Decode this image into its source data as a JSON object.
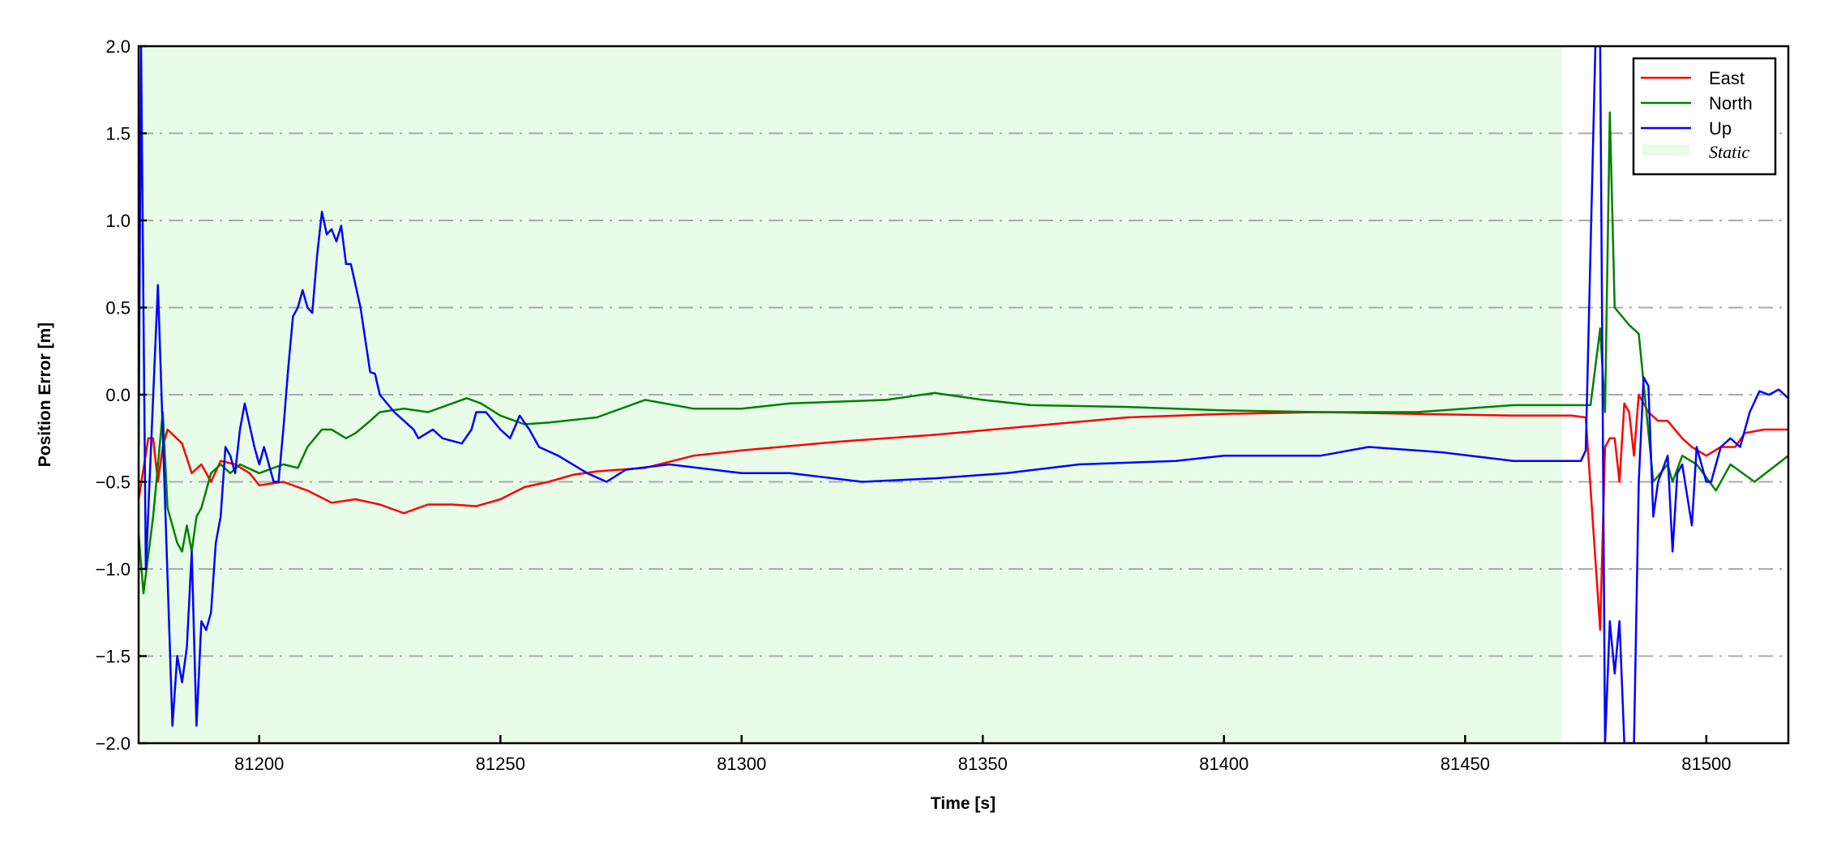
{
  "chart_data": {
    "type": "line",
    "title": "",
    "xlabel": "Time [s]",
    "ylabel": "Position Error [m]",
    "xlim": [
      81175,
      81517
    ],
    "ylim": [
      -2.0,
      2.0
    ],
    "xticks": [
      81200,
      81250,
      81300,
      81350,
      81400,
      81450,
      81500
    ],
    "xtick_labels": [
      "81200",
      "81250",
      "81300",
      "81350",
      "81400",
      "81450",
      "81500"
    ],
    "yticks": [
      2.0,
      1.5,
      1.0,
      0.5,
      0.0,
      -0.5,
      -1.0,
      -1.5,
      -2.0
    ],
    "ytick_labels": [
      "2.0",
      "1.5",
      "1.0",
      "0.5",
      "0.0",
      "−0.5",
      "−1.0",
      "−1.5",
      "−2.0"
    ],
    "grid": "horizontal dash-dot",
    "grid_color": "#aaaaaa",
    "legend_placement": "top-right",
    "shaded_region": {
      "name": "Static",
      "x": [
        81175,
        81470
      ],
      "color": "#e8fce8"
    },
    "series": [
      {
        "name": "East",
        "color": "#ff0000",
        "points": [
          [
            81175,
            -0.6
          ],
          [
            81177,
            -0.25
          ],
          [
            81178,
            -0.25
          ],
          [
            81179,
            -0.5
          ],
          [
            81180,
            -0.3
          ],
          [
            81181,
            -0.2
          ],
          [
            81184,
            -0.28
          ],
          [
            81186,
            -0.45
          ],
          [
            81188,
            -0.4
          ],
          [
            81190,
            -0.5
          ],
          [
            81192,
            -0.38
          ],
          [
            81195,
            -0.4
          ],
          [
            81198,
            -0.45
          ],
          [
            81200,
            -0.52
          ],
          [
            81205,
            -0.5
          ],
          [
            81210,
            -0.55
          ],
          [
            81215,
            -0.62
          ],
          [
            81220,
            -0.6
          ],
          [
            81225,
            -0.63
          ],
          [
            81230,
            -0.68
          ],
          [
            81235,
            -0.63
          ],
          [
            81240,
            -0.63
          ],
          [
            81245,
            -0.64
          ],
          [
            81250,
            -0.6
          ],
          [
            81255,
            -0.53
          ],
          [
            81260,
            -0.5
          ],
          [
            81265,
            -0.46
          ],
          [
            81270,
            -0.44
          ],
          [
            81280,
            -0.42
          ],
          [
            81290,
            -0.35
          ],
          [
            81300,
            -0.32
          ],
          [
            81320,
            -0.27
          ],
          [
            81340,
            -0.23
          ],
          [
            81360,
            -0.18
          ],
          [
            81380,
            -0.13
          ],
          [
            81400,
            -0.11
          ],
          [
            81420,
            -0.1
          ],
          [
            81440,
            -0.11
          ],
          [
            81460,
            -0.12
          ],
          [
            81472,
            -0.12
          ],
          [
            81475,
            -0.13
          ],
          [
            81478,
            -1.35
          ],
          [
            81479,
            -0.3
          ],
          [
            81480,
            -0.25
          ],
          [
            81481,
            -0.25
          ],
          [
            81482,
            -0.5
          ],
          [
            81483,
            -0.05
          ],
          [
            81484,
            -0.1
          ],
          [
            81485,
            -0.35
          ],
          [
            81486,
            0.0
          ],
          [
            81487,
            -0.05
          ],
          [
            81488,
            -0.1
          ],
          [
            81490,
            -0.15
          ],
          [
            81492,
            -0.15
          ],
          [
            81495,
            -0.25
          ],
          [
            81497,
            -0.3
          ],
          [
            81500,
            -0.35
          ],
          [
            81503,
            -0.3
          ],
          [
            81506,
            -0.3
          ],
          [
            81508,
            -0.22
          ],
          [
            81512,
            -0.2
          ],
          [
            81517,
            -0.2
          ]
        ]
      },
      {
        "name": "North",
        "color": "#008000",
        "points": [
          [
            81175,
            -0.8
          ],
          [
            81176,
            -1.14
          ],
          [
            81178,
            -0.7
          ],
          [
            81180,
            -0.1
          ],
          [
            81181,
            -0.65
          ],
          [
            81183,
            -0.85
          ],
          [
            81184,
            -0.9
          ],
          [
            81185,
            -0.75
          ],
          [
            81186,
            -0.9
          ],
          [
            81187,
            -0.7
          ],
          [
            81188,
            -0.65
          ],
          [
            81190,
            -0.45
          ],
          [
            81192,
            -0.4
          ],
          [
            81194,
            -0.45
          ],
          [
            81196,
            -0.4
          ],
          [
            81200,
            -0.45
          ],
          [
            81205,
            -0.4
          ],
          [
            81208,
            -0.42
          ],
          [
            81210,
            -0.3
          ],
          [
            81213,
            -0.2
          ],
          [
            81215,
            -0.2
          ],
          [
            81218,
            -0.25
          ],
          [
            81220,
            -0.22
          ],
          [
            81223,
            -0.15
          ],
          [
            81225,
            -0.1
          ],
          [
            81230,
            -0.08
          ],
          [
            81235,
            -0.1
          ],
          [
            81240,
            -0.05
          ],
          [
            81243,
            -0.02
          ],
          [
            81246,
            -0.05
          ],
          [
            81250,
            -0.12
          ],
          [
            81255,
            -0.17
          ],
          [
            81260,
            -0.16
          ],
          [
            81270,
            -0.13
          ],
          [
            81280,
            -0.03
          ],
          [
            81290,
            -0.08
          ],
          [
            81300,
            -0.08
          ],
          [
            81310,
            -0.05
          ],
          [
            81320,
            -0.04
          ],
          [
            81330,
            -0.03
          ],
          [
            81340,
            0.01
          ],
          [
            81350,
            -0.03
          ],
          [
            81360,
            -0.06
          ],
          [
            81380,
            -0.07
          ],
          [
            81400,
            -0.09
          ],
          [
            81420,
            -0.1
          ],
          [
            81440,
            -0.1
          ],
          [
            81460,
            -0.06
          ],
          [
            81476,
            -0.06
          ],
          [
            81478,
            0.38
          ],
          [
            81479,
            -0.1
          ],
          [
            81480,
            1.62
          ],
          [
            81481,
            0.5
          ],
          [
            81484,
            0.4
          ],
          [
            81486,
            0.35
          ],
          [
            81489,
            -0.5
          ],
          [
            81492,
            -0.4
          ],
          [
            81493,
            -0.5
          ],
          [
            81495,
            -0.35
          ],
          [
            81498,
            -0.4
          ],
          [
            81502,
            -0.55
          ],
          [
            81505,
            -0.4
          ],
          [
            81510,
            -0.5
          ],
          [
            81517,
            -0.35
          ]
        ]
      },
      {
        "name": "Up",
        "color": "#0000ff",
        "points": [
          [
            81175,
            -0.3
          ],
          [
            81175.5,
            2.0
          ],
          [
            81176.5,
            -1.0
          ],
          [
            81179,
            0.63
          ],
          [
            81182,
            -1.9
          ],
          [
            81183,
            -1.5
          ],
          [
            81184,
            -1.65
          ],
          [
            81185,
            -1.45
          ],
          [
            81186,
            -0.9
          ],
          [
            81187,
            -1.9
          ],
          [
            81188,
            -1.3
          ],
          [
            81189,
            -1.35
          ],
          [
            81190,
            -1.25
          ],
          [
            81191,
            -0.85
          ],
          [
            81192,
            -0.7
          ],
          [
            81193,
            -0.3
          ],
          [
            81194,
            -0.35
          ],
          [
            81195,
            -0.45
          ],
          [
            81196,
            -0.2
          ],
          [
            81197,
            -0.05
          ],
          [
            81199,
            -0.3
          ],
          [
            81200,
            -0.4
          ],
          [
            81201,
            -0.3
          ],
          [
            81203,
            -0.5
          ],
          [
            81204,
            -0.5
          ],
          [
            81205,
            -0.2
          ],
          [
            81206,
            0.15
          ],
          [
            81207,
            0.45
          ],
          [
            81208,
            0.5
          ],
          [
            81209,
            0.6
          ],
          [
            81210,
            0.5
          ],
          [
            81211,
            0.47
          ],
          [
            81212,
            0.8
          ],
          [
            81213,
            1.05
          ],
          [
            81214,
            0.92
          ],
          [
            81215,
            0.95
          ],
          [
            81216,
            0.88
          ],
          [
            81217,
            0.97
          ],
          [
            81218,
            0.75
          ],
          [
            81219,
            0.75
          ],
          [
            81221,
            0.5
          ],
          [
            81223,
            0.13
          ],
          [
            81224,
            0.12
          ],
          [
            81225,
            0.0
          ],
          [
            81228,
            -0.1
          ],
          [
            81232,
            -0.2
          ],
          [
            81233,
            -0.25
          ],
          [
            81236,
            -0.2
          ],
          [
            81238,
            -0.25
          ],
          [
            81242,
            -0.28
          ],
          [
            81244,
            -0.2
          ],
          [
            81245,
            -0.1
          ],
          [
            81247,
            -0.1
          ],
          [
            81250,
            -0.2
          ],
          [
            81252,
            -0.25
          ],
          [
            81254,
            -0.12
          ],
          [
            81256,
            -0.2
          ],
          [
            81258,
            -0.3
          ],
          [
            81262,
            -0.35
          ],
          [
            81268,
            -0.45
          ],
          [
            81272,
            -0.5
          ],
          [
            81276,
            -0.43
          ],
          [
            81285,
            -0.4
          ],
          [
            81300,
            -0.45
          ],
          [
            81310,
            -0.45
          ],
          [
            81325,
            -0.5
          ],
          [
            81340,
            -0.48
          ],
          [
            81355,
            -0.45
          ],
          [
            81370,
            -0.4
          ],
          [
            81390,
            -0.38
          ],
          [
            81400,
            -0.35
          ],
          [
            81420,
            -0.35
          ],
          [
            81430,
            -0.3
          ],
          [
            81445,
            -0.33
          ],
          [
            81460,
            -0.38
          ],
          [
            81474,
            -0.38
          ],
          [
            81475,
            -0.32
          ],
          [
            81477,
            2.0
          ],
          [
            81478,
            2.0
          ],
          [
            81479,
            -2.0
          ],
          [
            81480,
            -1.3
          ],
          [
            81481,
            -1.6
          ],
          [
            81482,
            -1.3
          ],
          [
            81483,
            -2.0
          ],
          [
            81485,
            -2.0
          ],
          [
            81486,
            -0.5
          ],
          [
            81487,
            0.1
          ],
          [
            81488,
            0.05
          ],
          [
            81489,
            -0.7
          ],
          [
            81490,
            -0.5
          ],
          [
            81492,
            -0.35
          ],
          [
            81493,
            -0.9
          ],
          [
            81494,
            -0.45
          ],
          [
            81495,
            -0.4
          ],
          [
            81497,
            -0.75
          ],
          [
            81498,
            -0.3
          ],
          [
            81500,
            -0.5
          ],
          [
            81501,
            -0.5
          ],
          [
            81503,
            -0.3
          ],
          [
            81505,
            -0.25
          ],
          [
            81507,
            -0.3
          ],
          [
            81509,
            -0.1
          ],
          [
            81511,
            0.02
          ],
          [
            81513,
            0.0
          ],
          [
            81515,
            0.03
          ],
          [
            81517,
            -0.02
          ]
        ]
      }
    ],
    "legend": [
      "East",
      "North",
      "Up",
      "Static"
    ]
  }
}
